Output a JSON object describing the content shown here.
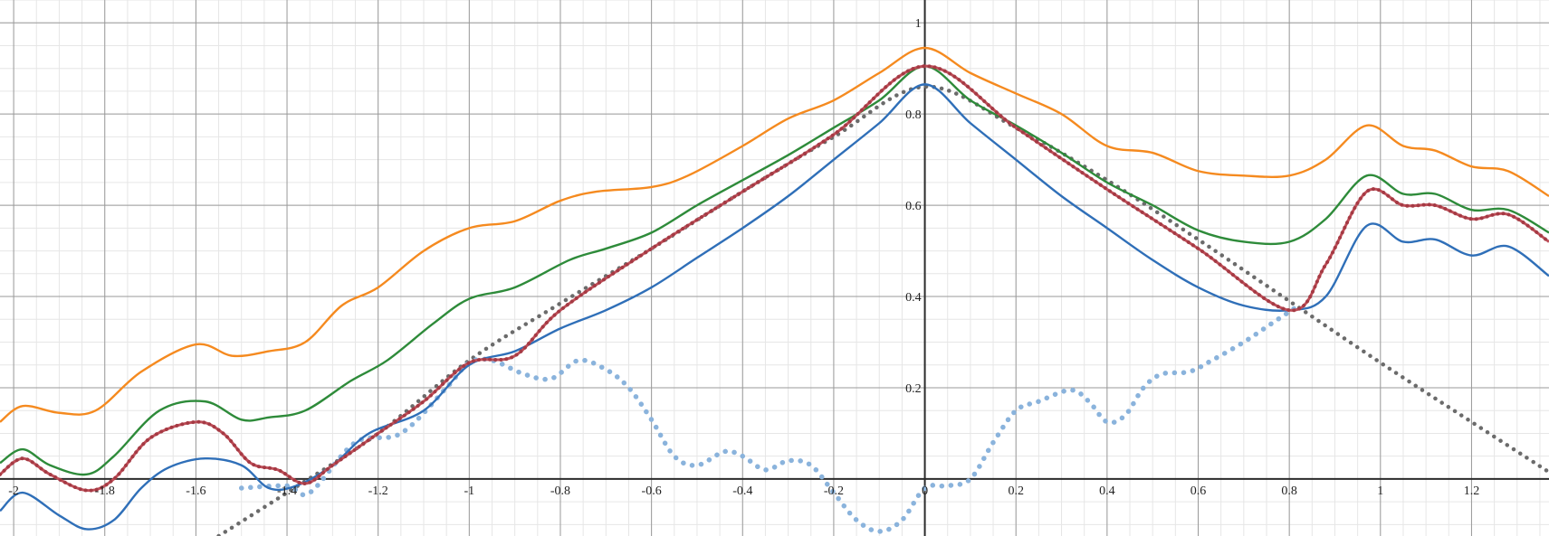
{
  "chart_data": {
    "type": "line",
    "title": "",
    "xlabel": "",
    "ylabel": "",
    "xlim": [
      -2.03,
      1.37
    ],
    "ylim": [
      -0.125,
      1.05
    ],
    "grid": true,
    "x_ticks": [
      -2,
      -1.8,
      -1.6,
      -1.4,
      -1.2,
      -1,
      -0.8,
      -0.6,
      -0.4,
      -0.2,
      0,
      0.2,
      0.4,
      0.6,
      0.8,
      1,
      1.2
    ],
    "x_tick_labels": [
      "-2",
      "-1.8",
      "-1.6",
      "-1.4",
      "-1.2",
      "-1",
      "-0.8",
      "-0.6",
      "-0.4",
      "-0.2",
      "0",
      "0.2",
      "0.4",
      "0.6",
      "0.8",
      "1",
      "1.2"
    ],
    "y_ticks": [
      0.2,
      0.4,
      0.6,
      0.8,
      1
    ],
    "y_tick_labels": [
      "0.2",
      "0.4",
      "0.6",
      "0.8",
      "1"
    ],
    "series": [
      {
        "style": "dotted",
        "color": "#6b6b6b",
        "x": [
          -1.55,
          -1.4,
          -1.2,
          -1.0,
          -0.8,
          -0.6,
          -0.4,
          -0.2,
          0,
          0.2,
          0.4,
          0.6,
          0.8,
          1.0,
          1.2,
          1.37
        ],
        "y": [
          -0.125,
          -0.03,
          0.1,
          0.26,
          0.385,
          0.505,
          0.63,
          0.75,
          0.86,
          0.77,
          0.655,
          0.525,
          0.39,
          0.255,
          0.125,
          0.015
        ]
      },
      {
        "style": "dotted",
        "color": "#8ab3dc",
        "x": [
          -1.5,
          -1.4,
          -1.35,
          -1.25,
          -1.15,
          -1.05,
          -1.0,
          -0.95,
          -0.88,
          -0.82,
          -0.76,
          -0.7,
          -0.65,
          -0.6,
          -0.55,
          -0.5,
          -0.44,
          -0.4,
          -0.35,
          -0.3,
          -0.25,
          -0.2,
          -0.15,
          -0.1,
          -0.05,
          0,
          0.05,
          0.1,
          0.15,
          0.2,
          0.25,
          0.32,
          0.36,
          0.4,
          0.44,
          0.48,
          0.52,
          0.58,
          0.63,
          0.7,
          0.76,
          0.82
        ],
        "y": [
          -0.02,
          -0.015,
          -0.03,
          0.08,
          0.1,
          0.2,
          0.255,
          0.26,
          0.23,
          0.22,
          0.26,
          0.24,
          0.2,
          0.13,
          0.05,
          0.03,
          0.06,
          0.05,
          0.02,
          0.04,
          0.03,
          -0.03,
          -0.09,
          -0.115,
          -0.09,
          -0.02,
          -0.015,
          0.0,
          0.08,
          0.15,
          0.17,
          0.195,
          0.17,
          0.125,
          0.14,
          0.2,
          0.23,
          0.235,
          0.26,
          0.3,
          0.34,
          0.38
        ]
      },
      {
        "style": "solid",
        "color": "#f58a1f",
        "x": [
          -2.03,
          -1.98,
          -1.9,
          -1.82,
          -1.72,
          -1.6,
          -1.52,
          -1.44,
          -1.36,
          -1.28,
          -1.2,
          -1.1,
          -1.0,
          -0.9,
          -0.8,
          -0.72,
          -0.6,
          -0.52,
          -0.4,
          -0.3,
          -0.2,
          -0.1,
          0,
          0.1,
          0.2,
          0.3,
          0.4,
          0.5,
          0.6,
          0.7,
          0.8,
          0.88,
          0.97,
          1.05,
          1.12,
          1.2,
          1.28,
          1.37
        ],
        "y": [
          0.125,
          0.16,
          0.145,
          0.15,
          0.235,
          0.295,
          0.27,
          0.28,
          0.3,
          0.38,
          0.42,
          0.5,
          0.55,
          0.565,
          0.61,
          0.63,
          0.64,
          0.665,
          0.73,
          0.79,
          0.83,
          0.89,
          0.945,
          0.89,
          0.845,
          0.8,
          0.73,
          0.715,
          0.675,
          0.665,
          0.665,
          0.7,
          0.775,
          0.73,
          0.72,
          0.685,
          0.675,
          0.62
        ]
      },
      {
        "style": "solid",
        "color": "#2e8b3a",
        "x": [
          -2.03,
          -1.98,
          -1.92,
          -1.84,
          -1.78,
          -1.68,
          -1.58,
          -1.5,
          -1.44,
          -1.36,
          -1.26,
          -1.18,
          -1.08,
          -1.0,
          -0.9,
          -0.78,
          -0.7,
          -0.6,
          -0.5,
          -0.4,
          -0.3,
          -0.2,
          -0.1,
          0,
          0.1,
          0.2,
          0.3,
          0.4,
          0.5,
          0.6,
          0.7,
          0.8,
          0.88,
          0.97,
          1.05,
          1.12,
          1.2,
          1.28,
          1.37
        ],
        "y": [
          0.035,
          0.065,
          0.03,
          0.01,
          0.05,
          0.15,
          0.17,
          0.13,
          0.135,
          0.15,
          0.215,
          0.26,
          0.34,
          0.395,
          0.42,
          0.48,
          0.505,
          0.54,
          0.6,
          0.655,
          0.71,
          0.77,
          0.83,
          0.905,
          0.83,
          0.775,
          0.715,
          0.65,
          0.6,
          0.545,
          0.52,
          0.52,
          0.57,
          0.665,
          0.625,
          0.625,
          0.59,
          0.59,
          0.54
        ]
      },
      {
        "style": "solid",
        "color": "#2f6fb8",
        "x": [
          -2.03,
          -1.98,
          -1.9,
          -1.84,
          -1.78,
          -1.72,
          -1.66,
          -1.58,
          -1.5,
          -1.44,
          -1.38,
          -1.3,
          -1.22,
          -1.1,
          -1.0,
          -0.9,
          -0.8,
          -0.7,
          -0.6,
          -0.5,
          -0.4,
          -0.3,
          -0.2,
          -0.1,
          0,
          0.1,
          0.2,
          0.3,
          0.4,
          0.5,
          0.6,
          0.7,
          0.8,
          0.88,
          0.97,
          1.05,
          1.12,
          1.2,
          1.28,
          1.37
        ],
        "y": [
          -0.07,
          -0.03,
          -0.08,
          -0.11,
          -0.09,
          -0.02,
          0.025,
          0.045,
          0.03,
          -0.02,
          -0.015,
          0.03,
          0.1,
          0.15,
          0.25,
          0.28,
          0.33,
          0.37,
          0.42,
          0.485,
          0.55,
          0.62,
          0.7,
          0.78,
          0.865,
          0.78,
          0.7,
          0.62,
          0.55,
          0.48,
          0.42,
          0.38,
          0.37,
          0.4,
          0.555,
          0.52,
          0.525,
          0.49,
          0.51,
          0.445
        ]
      },
      {
        "style": "solid-dotted",
        "color": "#c0505a",
        "x": [
          -2.03,
          -1.98,
          -1.92,
          -1.84,
          -1.78,
          -1.7,
          -1.6,
          -1.54,
          -1.48,
          -1.42,
          -1.36,
          -1.3,
          -1.2,
          -1.1,
          -1.0,
          -0.9,
          -0.8,
          -0.6,
          -0.4,
          -0.2,
          0,
          0.2,
          0.4,
          0.6,
          0.8,
          0.88,
          0.97,
          1.05,
          1.12,
          1.2,
          1.28,
          1.37
        ],
        "y": [
          0.01,
          0.045,
          0.01,
          -0.025,
          0.0,
          0.09,
          0.125,
          0.1,
          0.035,
          0.02,
          -0.01,
          0.03,
          0.1,
          0.17,
          0.255,
          0.27,
          0.37,
          0.505,
          0.63,
          0.755,
          0.905,
          0.77,
          0.635,
          0.505,
          0.37,
          0.47,
          0.63,
          0.6,
          0.6,
          0.57,
          0.58,
          0.52
        ]
      }
    ]
  }
}
